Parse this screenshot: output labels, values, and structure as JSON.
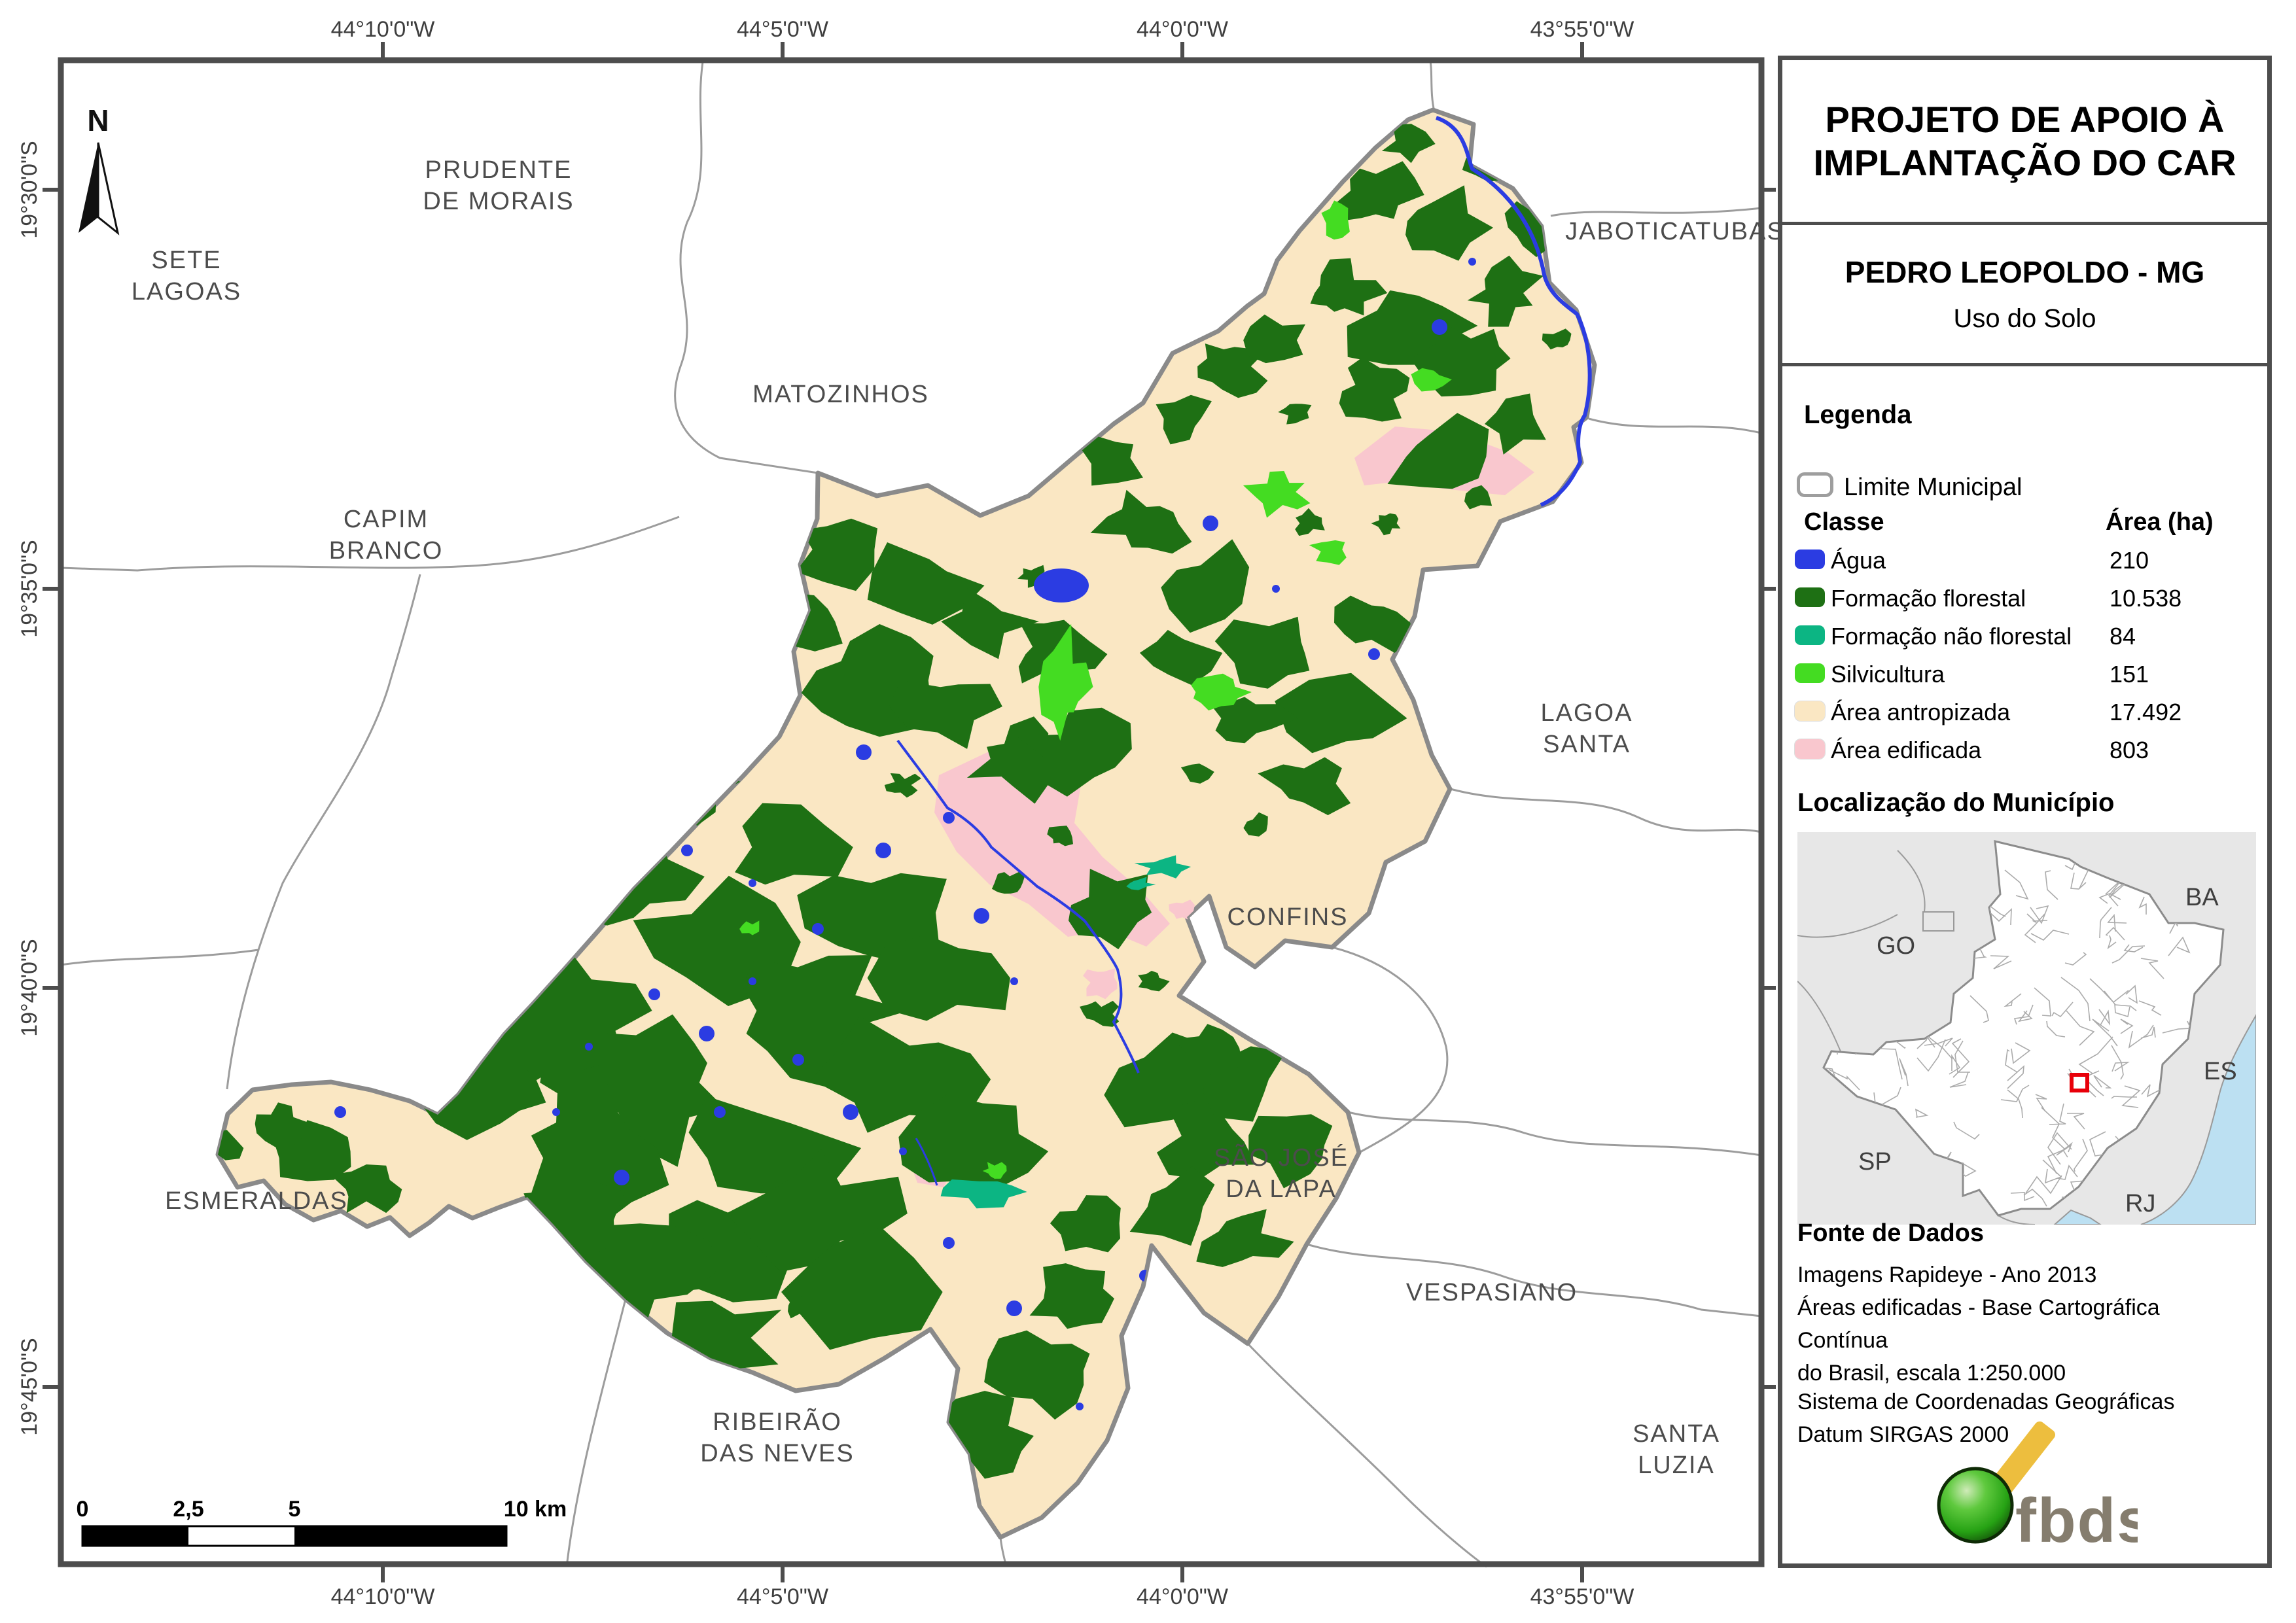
{
  "panel": {
    "title_line1": "PROJETO DE APOIO À",
    "title_line2": "IMPLANTAÇÃO DO CAR",
    "municipality": "PEDRO LEOPOLDO - MG",
    "subtitle": "Uso do Solo",
    "legend_header": "Legenda",
    "limite_label": "Limite Municipal",
    "classe_header": "Classe",
    "area_header": "Área (ha)",
    "classes": [
      {
        "name": "Água",
        "area": "210",
        "color": "#2B3CE2"
      },
      {
        "name": "Formação florestal",
        "area": "10.538",
        "color": "#1E7014"
      },
      {
        "name": "Formação não florestal",
        "area": "84",
        "color": "#0CB583"
      },
      {
        "name": "Silvicultura",
        "area": "151",
        "color": "#44DC22"
      },
      {
        "name": "Área antropizada",
        "area": "17.492",
        "color": "#FAE7C3"
      },
      {
        "name": "Área edificada",
        "area": "803",
        "color": "#F9C7CE"
      }
    ],
    "localizacao_header": "Localização do Município",
    "locator_states": {
      "go": "GO",
      "ba": "BA",
      "es": "ES",
      "sp": "SP",
      "rj": "RJ"
    },
    "fonte_header": "Fonte de Dados",
    "fonte_lines": [
      "Imagens Rapideye - Ano 2013",
      "Áreas edificadas - Base Cartográfica Contínua",
      "do Brasil, escala 1:250.000"
    ],
    "sistema_lines": [
      "Sistema de Coordenadas Geográficas",
      "Datum SIRGAS 2000"
    ],
    "logo_text": "fbds",
    "colors": {
      "frame": "#4D4D4D",
      "boundary": "#9C9C9C",
      "muni_border": "#8A8A8A",
      "ocean": "#BCE0F2",
      "locator_bg": "#E7E7E7",
      "red_marker": "#E8000A",
      "logo_text": "#857D6E",
      "logo_yellow": "#EDBE3E",
      "logo_green": "#2EA818"
    }
  },
  "map": {
    "north_label": "N",
    "coords_x": [
      "44°10'0\"W",
      "44°5'0\"W",
      "44°0'0\"W",
      "43°55'0\"W"
    ],
    "coords_y": [
      "19°30'0\"S",
      "19°35'0\"S",
      "19°40'0\"S",
      "19°45'0\"S"
    ],
    "labels": {
      "sete_lagoas": {
        "l1": "SETE",
        "l2": "LAGOAS"
      },
      "prudente": {
        "l1": "PRUDENTE",
        "l2": "DE MORAIS"
      },
      "matozinhos": {
        "l1": "MATOZINHOS"
      },
      "jaboticatubas": {
        "l1": "JABOTICATUBAS"
      },
      "capim_branco": {
        "l1": "CAPIM",
        "l2": "BRANCO"
      },
      "lagoa_santa": {
        "l1": "LAGOA",
        "l2": "SANTA"
      },
      "confins": {
        "l1": "CONFINS"
      },
      "sao_jose": {
        "l1": "SÃO JOSÉ",
        "l2": "DA LAPA"
      },
      "esmeraldas": {
        "l1": "ESMERALDAS"
      },
      "vespasiano": {
        "l1": "VESPASIANO"
      },
      "ribeirao": {
        "l1": "RIBEIRÃO",
        "l2": "DAS NEVES"
      },
      "santa_luzia": {
        "l1": "SANTA",
        "l2": "LUZIA"
      }
    },
    "scalebar": {
      "t0": "0",
      "t1": "2,5",
      "t2": "5",
      "t3": "10 km"
    }
  }
}
